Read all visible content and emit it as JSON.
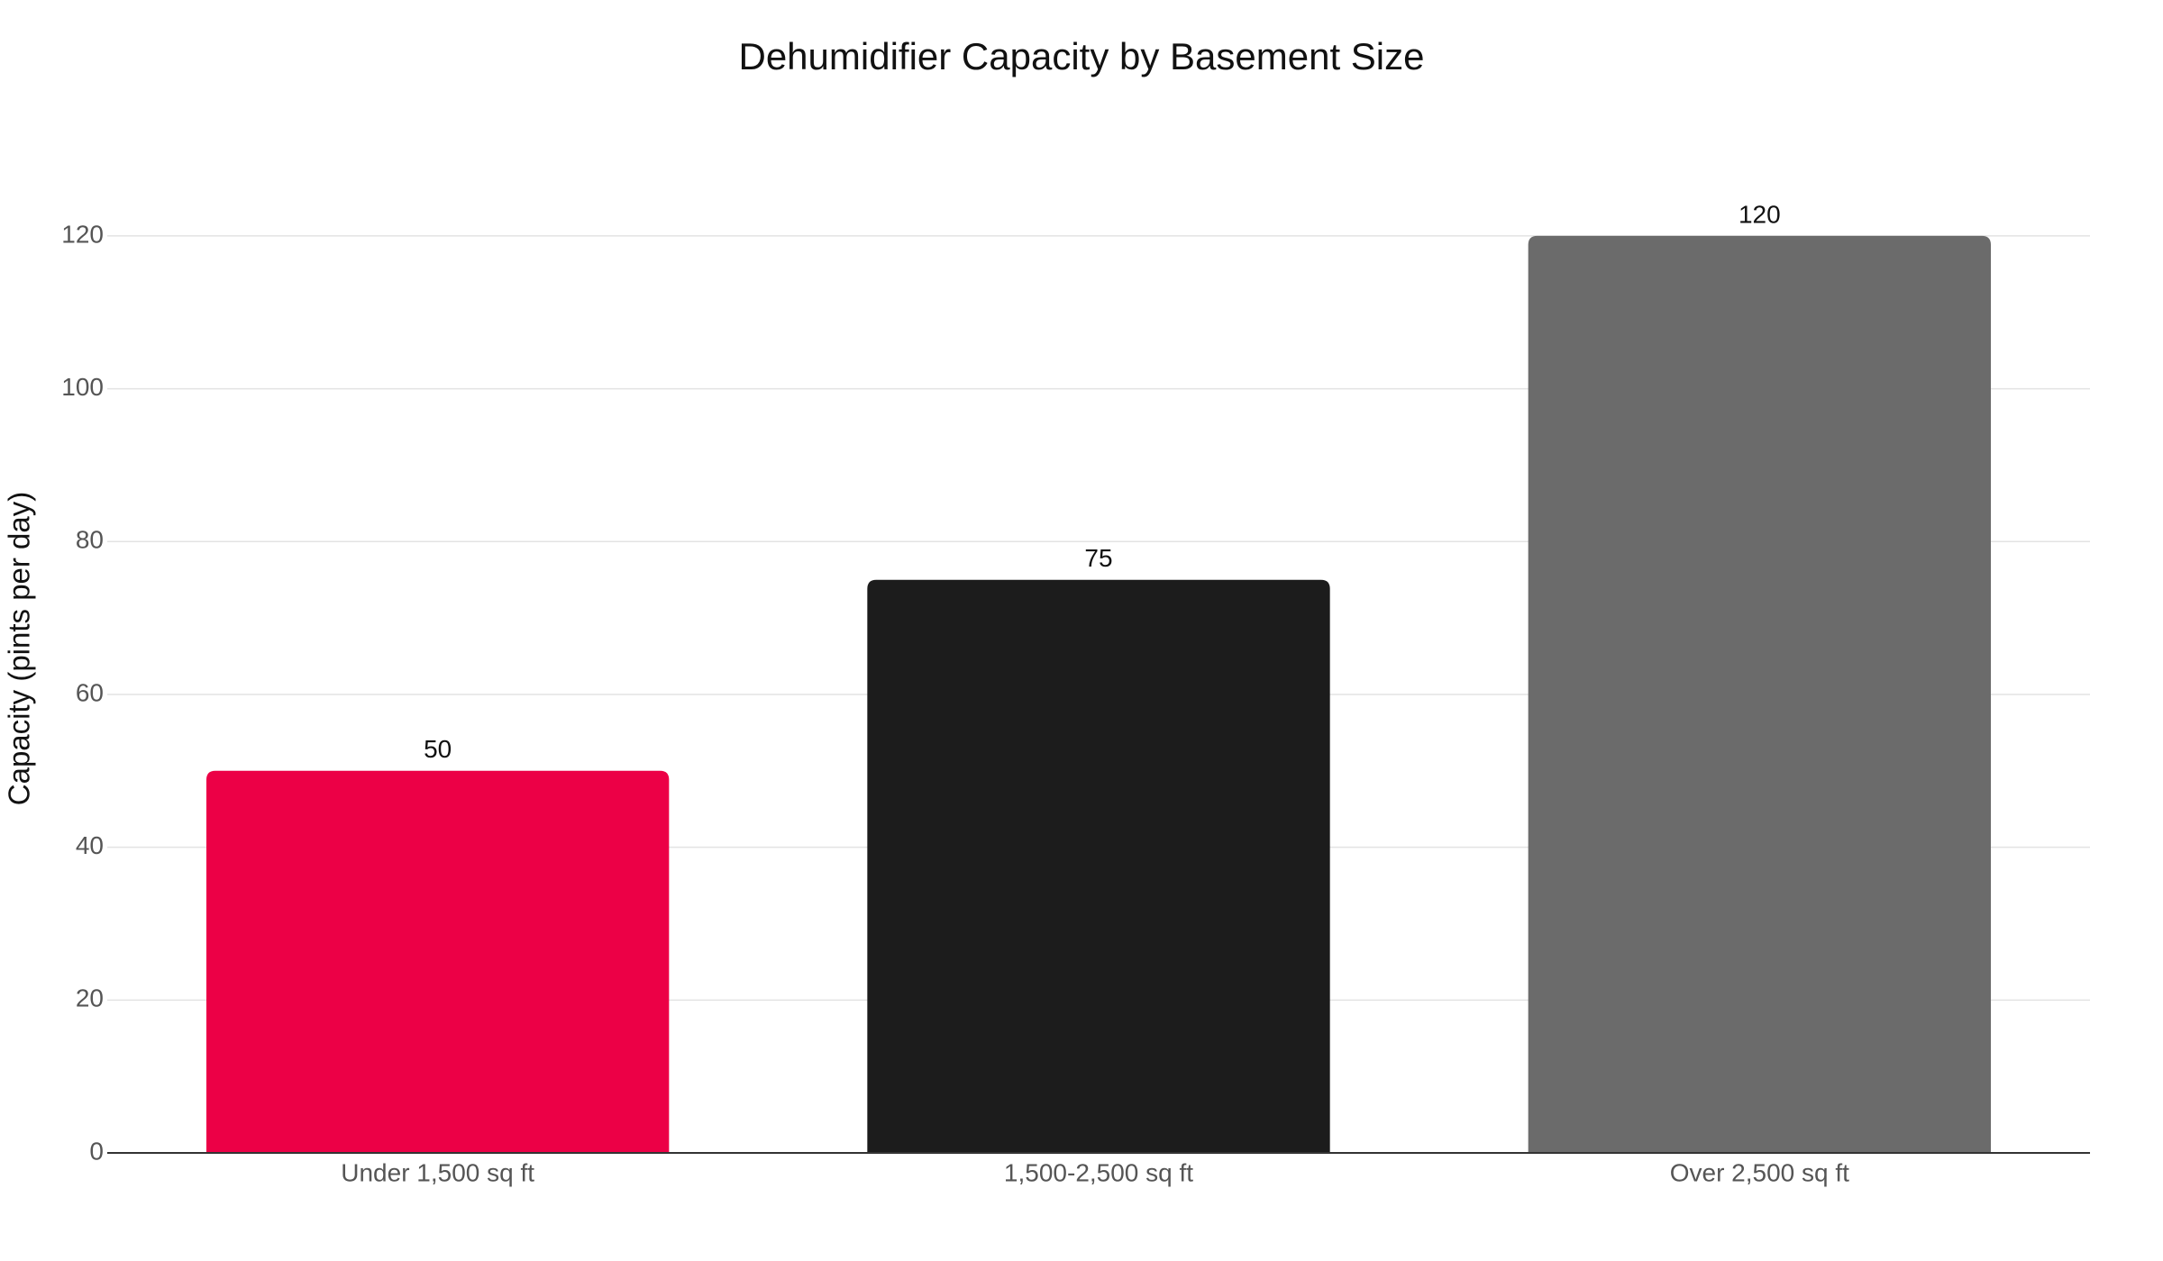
{
  "chart_data": {
    "type": "bar",
    "title": "Dehumidifier Capacity by Basement Size",
    "y_label": "Capacity (pints per day)",
    "categories": [
      "Under 1,500 sq ft",
      "1,500-2,500 sq ft",
      "Over 2,500 sq ft"
    ],
    "values": [
      50,
      75,
      120
    ],
    "colors": [
      "#ec0046",
      "#1c1c1c",
      "#6b6b6b"
    ],
    "ylim": [
      0,
      126
    ],
    "yticks": [
      0,
      20,
      40,
      60,
      80,
      100,
      120
    ],
    "grid": true
  }
}
